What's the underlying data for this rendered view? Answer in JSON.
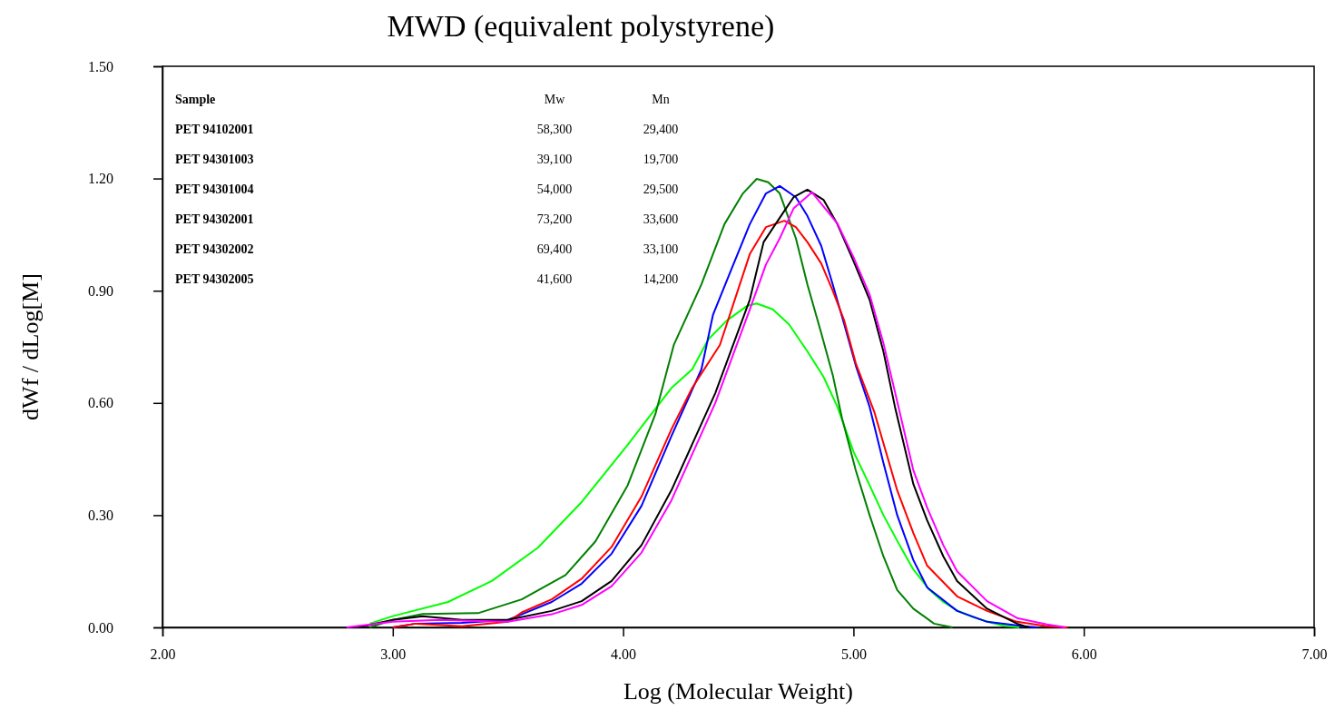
{
  "chart_data": {
    "type": "line",
    "title": "MWD (equivalent polystyrene)",
    "xlabel": "Log (Molecular Weight)",
    "ylabel": "dWf / dLog[M]",
    "xlim": [
      2,
      7
    ],
    "xticks": [
      {
        "value": 2,
        "label": "2.00"
      },
      {
        "value": 3,
        "label": "3.00"
      },
      {
        "value": 4,
        "label": "4.00"
      },
      {
        "value": 5,
        "label": "5.00"
      },
      {
        "value": 6,
        "label": "6.00"
      },
      {
        "value": 7,
        "label": "7.00"
      }
    ],
    "ylim": [
      0,
      1.5
    ],
    "yticks": [
      {
        "value": 0,
        "label": "0.00"
      },
      {
        "value": 0.3,
        "label": "0.30"
      },
      {
        "value": 0.6,
        "label": "0.60"
      },
      {
        "value": 0.9,
        "label": "0.90"
      },
      {
        "value": 1.2,
        "label": "1.20"
      },
      {
        "value": 1.5,
        "label": "1.50"
      }
    ],
    "grid": false,
    "marker": "none",
    "line_style": "solid",
    "annotations": [
      "Sample",
      "Mw",
      "Mn",
      "PET 94102001",
      "58,300",
      "29,400",
      "PET 94301003",
      "39,100",
      "19,700",
      "PET 94301004",
      "54,000",
      "29,500",
      "PET 94302001",
      "73,200",
      "33,600",
      "PET 94302002",
      "69,400",
      "33,100",
      "PET 94302005",
      "41,600",
      "14,200"
    ],
    "series": [
      {
        "color": "#00ff00",
        "x": [
          2.9,
          3.0,
          3.24,
          3.43,
          3.63,
          3.82,
          4.02,
          4.12,
          4.21,
          4.3,
          4.37,
          4.45,
          4.54,
          4.58,
          4.65,
          4.72,
          4.8,
          4.87,
          4.93,
          5.0,
          5.07,
          5.13,
          5.2,
          5.26,
          5.33,
          5.39,
          5.45,
          5.52,
          5.6,
          5.65,
          5.72
        ],
        "values": [
          0.01,
          0.03,
          0.068,
          0.124,
          0.213,
          0.335,
          0.488,
          0.568,
          0.64,
          0.69,
          0.77,
          0.82,
          0.86,
          0.866,
          0.85,
          0.81,
          0.738,
          0.67,
          0.59,
          0.47,
          0.38,
          0.3,
          0.22,
          0.155,
          0.1,
          0.068,
          0.045,
          0.027,
          0.012,
          0.005,
          0
        ]
      },
      {
        "color": "#008000",
        "x": [
          2.9,
          3.0,
          3.13,
          3.37,
          3.56,
          3.75,
          3.88,
          4.02,
          4.14,
          4.22,
          4.34,
          4.44,
          4.52,
          4.58,
          4.63,
          4.68,
          4.75,
          4.8,
          4.86,
          4.91,
          4.95,
          5.01,
          5.07,
          5.13,
          5.19,
          5.26,
          5.35,
          5.43
        ],
        "values": [
          0,
          0.02,
          0.036,
          0.038,
          0.075,
          0.14,
          0.23,
          0.38,
          0.57,
          0.755,
          0.917,
          1.078,
          1.16,
          1.199,
          1.19,
          1.16,
          1.04,
          0.917,
          0.787,
          0.675,
          0.56,
          0.42,
          0.3,
          0.19,
          0.1,
          0.05,
          0.01,
          0
        ]
      },
      {
        "color": "#0000ff",
        "x": [
          3.0,
          3.1,
          3.3,
          3.5,
          3.56,
          3.69,
          3.82,
          3.95,
          4.08,
          4.21,
          4.34,
          4.39,
          4.47,
          4.55,
          4.62,
          4.68,
          4.75,
          4.8,
          4.86,
          4.91,
          4.96,
          5.01,
          5.07,
          5.13,
          5.19,
          5.26,
          5.32,
          5.45,
          5.58,
          5.74,
          5.8
        ],
        "values": [
          0,
          0.01,
          0.012,
          0.02,
          0.035,
          0.068,
          0.117,
          0.197,
          0.325,
          0.512,
          0.69,
          0.835,
          0.957,
          1.078,
          1.16,
          1.18,
          1.15,
          1.1,
          1.02,
          0.917,
          0.81,
          0.7,
          0.59,
          0.44,
          0.3,
          0.18,
          0.107,
          0.044,
          0.015,
          0.003,
          0
        ]
      },
      {
        "color": "#ff0000",
        "x": [
          3.0,
          3.1,
          3.3,
          3.5,
          3.56,
          3.69,
          3.82,
          3.95,
          4.08,
          4.21,
          4.3,
          4.42,
          4.55,
          4.62,
          4.7,
          4.75,
          4.8,
          4.86,
          4.91,
          4.96,
          5.01,
          5.09,
          5.19,
          5.26,
          5.32,
          5.45,
          5.58,
          5.71,
          5.84,
          5.93
        ],
        "values": [
          0,
          0.01,
          0.003,
          0.015,
          0.04,
          0.075,
          0.13,
          0.215,
          0.35,
          0.53,
          0.64,
          0.755,
          0.998,
          1.07,
          1.087,
          1.07,
          1.03,
          0.973,
          0.9,
          0.82,
          0.706,
          0.577,
          0.366,
          0.252,
          0.165,
          0.083,
          0.044,
          0.015,
          0.003,
          0
        ]
      },
      {
        "color": "#000000",
        "x": [
          2.85,
          3.0,
          3.13,
          3.3,
          3.5,
          3.69,
          3.82,
          3.95,
          4.08,
          4.21,
          4.4,
          4.55,
          4.61,
          4.68,
          4.74,
          4.8,
          4.87,
          4.93,
          5.0,
          5.07,
          5.13,
          5.18,
          5.26,
          5.32,
          5.39,
          5.45,
          5.58,
          5.71,
          5.76
        ],
        "values": [
          0,
          0.02,
          0.03,
          0.02,
          0.02,
          0.044,
          0.07,
          0.124,
          0.22,
          0.367,
          0.626,
          0.876,
          1.03,
          1.095,
          1.15,
          1.17,
          1.143,
          1.078,
          0.98,
          0.876,
          0.738,
          0.59,
          0.383,
          0.286,
          0.19,
          0.124,
          0.05,
          0.01,
          0
        ]
      },
      {
        "color": "#ff00ff",
        "x": [
          2.8,
          3.0,
          3.2,
          3.5,
          3.69,
          3.82,
          3.95,
          4.08,
          4.21,
          4.4,
          4.55,
          4.62,
          4.68,
          4.74,
          4.82,
          4.93,
          5.0,
          5.07,
          5.13,
          5.18,
          5.26,
          5.32,
          5.39,
          5.45,
          5.58,
          5.71,
          5.84,
          5.92
        ],
        "values": [
          0,
          0.015,
          0.02,
          0.015,
          0.035,
          0.06,
          0.11,
          0.2,
          0.34,
          0.6,
          0.85,
          0.97,
          1.04,
          1.12,
          1.163,
          1.08,
          0.99,
          0.89,
          0.76,
          0.63,
          0.42,
          0.32,
          0.22,
          0.15,
          0.07,
          0.025,
          0.008,
          0
        ]
      }
    ]
  }
}
